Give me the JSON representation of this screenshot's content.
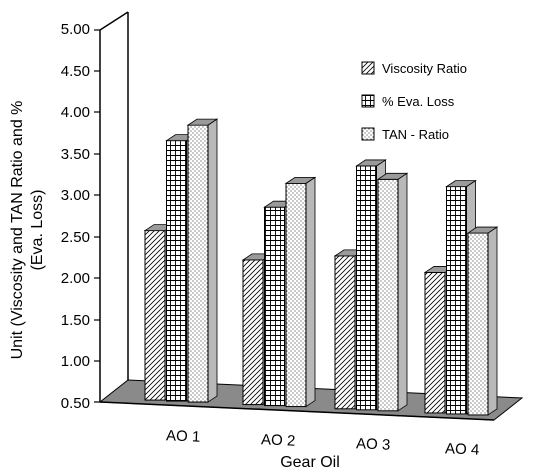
{
  "chart_data": {
    "type": "bar",
    "title": "",
    "xlabel": "Gear Oil",
    "ylabel_lines": [
      "Unit (Viscosity and TAN Ratio and %",
      "(Eva. Loss)"
    ],
    "categories": [
      "AO 1",
      "AO 2",
      "AO 3",
      "AO 4"
    ],
    "yticks": [
      "5.00",
      "4.50",
      "4.00",
      "3.50",
      "3.00",
      "2.50",
      "2.00",
      "1.50",
      "1.00",
      "0.50"
    ],
    "ylim": [
      0.5,
      5.0
    ],
    "grid": false,
    "legend_position": "top-right",
    "series": [
      {
        "name": "Viscosity Ratio",
        "pattern": "diagonal-hatch",
        "values": [
          2.55,
          2.25,
          2.35,
          2.2
        ]
      },
      {
        "name": "% Eva. Loss",
        "pattern": "grid-hatch",
        "values": [
          3.65,
          2.9,
          3.45,
          3.25
        ]
      },
      {
        "name": "TAN - Ratio",
        "pattern": "dots",
        "values": [
          3.85,
          3.2,
          3.3,
          2.7
        ]
      }
    ],
    "colors": {
      "floor": "#8a8a8a",
      "top_face": "#9a9a9a",
      "axis": "#000000",
      "bar_fill": "#ffffff"
    }
  }
}
